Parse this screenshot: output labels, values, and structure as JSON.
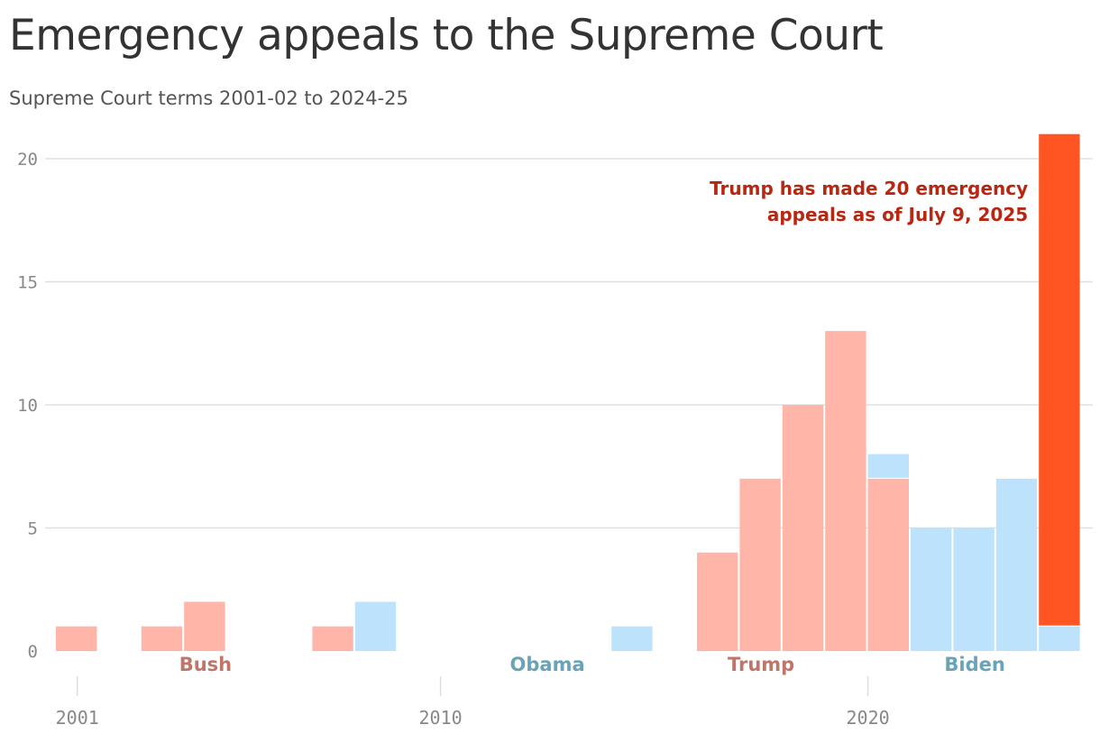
{
  "header": {
    "title": "Emergency appeals to the Supreme Court",
    "subtitle": "Supreme Court terms 2001-02 to 2024-25"
  },
  "colors": {
    "republican": "#ffb5a8",
    "democrat": "#bde3fc",
    "highlight": "#ff5522",
    "annotation": "#b82712",
    "rep_label": "#c0756a",
    "dem_label": "#6aa3b8",
    "grid": "#e0e0e0",
    "tick": "#888888"
  },
  "chart_data": {
    "type": "bar",
    "stacked": true,
    "x": [
      2001,
      2002,
      2003,
      2004,
      2005,
      2006,
      2007,
      2008,
      2009,
      2010,
      2011,
      2012,
      2013,
      2014,
      2015,
      2016,
      2017,
      2018,
      2019,
      2020,
      2021,
      2022,
      2023,
      2024
    ],
    "series": [
      {
        "party": "republican",
        "values": [
          1,
          0,
          1,
          2,
          0,
          0,
          1,
          0,
          0,
          0,
          0,
          0,
          0,
          0,
          0,
          4,
          7,
          10,
          13,
          7,
          0,
          0,
          0,
          20
        ]
      },
      {
        "party": "democrat",
        "values": [
          0,
          0,
          0,
          0,
          0,
          0,
          0,
          2,
          0,
          0,
          0,
          0,
          0,
          1,
          0,
          0,
          0,
          0,
          0,
          1,
          5,
          5,
          7,
          1
        ]
      }
    ],
    "highlight_x": 2024,
    "stack_order_note": "democrat bars drawn first (bottom), except 2020 where republican is bottom",
    "bottom_series_2020": "republican",
    "ylim": [
      0,
      21
    ],
    "yticks": [
      0,
      5,
      10,
      15,
      20
    ],
    "xticks": [
      2001,
      2010,
      2020
    ],
    "xtick_labels": [
      "2001",
      "2010",
      "2020"
    ],
    "grid": true,
    "presidents": [
      {
        "name": "Bush",
        "party": "republican",
        "center": 2004.5
      },
      {
        "name": "Obama",
        "party": "democrat",
        "center": 2012.5
      },
      {
        "name": "Trump",
        "party": "republican",
        "center": 2017.5
      },
      {
        "name": "Biden",
        "party": "democrat",
        "center": 2022.5
      }
    ],
    "annotation": {
      "lines": [
        "Trump has made 20 emergency",
        "appeals as of July 9, 2025"
      ],
      "anchor": "right-of-top"
    }
  }
}
